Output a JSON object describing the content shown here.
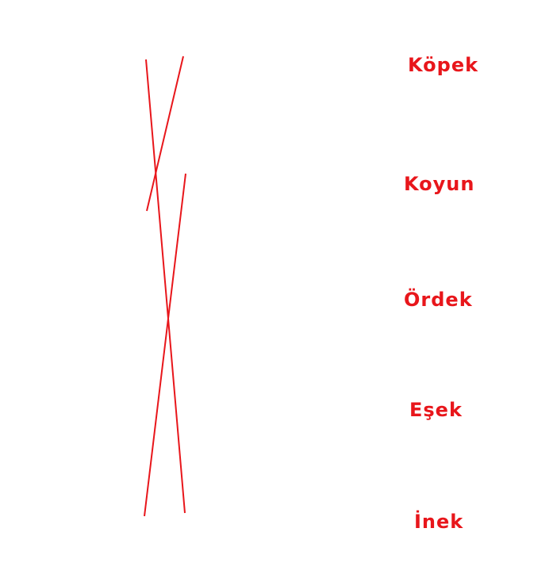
{
  "words": [
    "Köpek",
    "Koyun",
    "Ördek",
    "Eşek",
    "İnek"
  ],
  "colors": {
    "text": "#e8161b",
    "line": "#e8161b",
    "background": "#ffffff"
  }
}
